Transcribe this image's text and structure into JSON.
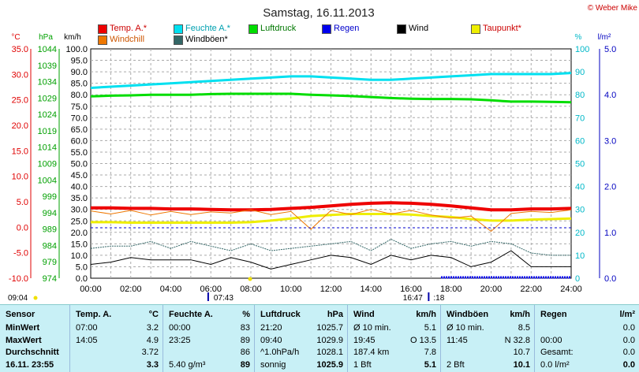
{
  "chart_data": {
    "type": "line",
    "title": "Samstag, 16.11.2013",
    "credit": "© Weber Mike",
    "x_ticks": [
      "00:00",
      "02:00",
      "04:00",
      "06:00",
      "08:00",
      "10:00",
      "12:00",
      "14:00",
      "16:00",
      "18:00",
      "20:00",
      "22:00",
      "24:00"
    ],
    "axes": {
      "temp": {
        "unit": "°C",
        "ticks": [
          "35.0",
          "30.0",
          "25.0",
          "20.0",
          "15.0",
          "10.0",
          "5.0",
          "0.0",
          "-5.0",
          "-10.0"
        ],
        "range": [
          -10,
          35
        ],
        "color": "#e00000"
      },
      "pressure": {
        "unit": "hPa",
        "ticks": [
          "1044",
          "1039",
          "1034",
          "1029",
          "1024",
          "1019",
          "1014",
          "1009",
          "1004",
          "999",
          "994",
          "989",
          "984",
          "979",
          "974"
        ],
        "range": [
          974,
          1044
        ],
        "color": "#00a000"
      },
      "wind": {
        "unit": "km/h",
        "ticks": [
          "100.0",
          "95.0",
          "90.0",
          "85.0",
          "80.0",
          "75.0",
          "70.0",
          "65.0",
          "60.0",
          "55.0",
          "50.0",
          "45.0",
          "40.0",
          "35.0",
          "30.0",
          "25.0",
          "20.0",
          "15.0",
          "10.0",
          "5.0",
          "0.0"
        ],
        "range": [
          0,
          100
        ],
        "color": "#000000"
      },
      "humidity": {
        "unit": "%",
        "ticks": [
          "100",
          "90",
          "80",
          "70",
          "60",
          "50",
          "40",
          "30",
          "20",
          "10",
          "0"
        ],
        "range": [
          0,
          100
        ],
        "color": "#00b8c8"
      },
      "rain": {
        "unit": "l/m²",
        "ticks": [
          "5.0",
          "4.0",
          "3.0",
          "2.0",
          "1.0",
          "0.0"
        ],
        "range": [
          0,
          5
        ],
        "color": "#0000c0"
      }
    },
    "legend": [
      {
        "name": "Temp. A.*",
        "color": "#ee0000"
      },
      {
        "name": "Feuchte A.*",
        "color": "#00e0f0"
      },
      {
        "name": "Luftdruck",
        "color": "#00dd00"
      },
      {
        "name": "Regen",
        "color": "#0000ee"
      },
      {
        "name": "Wind",
        "color": "#000000"
      },
      {
        "name": "Taupunkt*",
        "color": "#eeee00"
      },
      {
        "name": "Windchill",
        "color": "#ee7700"
      },
      {
        "name": "Windböen*",
        "color": "#336666"
      }
    ],
    "hours": [
      0,
      1,
      2,
      3,
      4,
      5,
      6,
      7,
      8,
      9,
      10,
      11,
      12,
      13,
      14,
      15,
      16,
      17,
      18,
      19,
      20,
      21,
      22,
      23,
      24
    ],
    "series": [
      {
        "name": "Temp. A.*",
        "axis": "temp",
        "color": "#ee0000",
        "values": [
          3.8,
          3.8,
          3.7,
          3.7,
          3.6,
          3.6,
          3.5,
          3.4,
          3.4,
          3.5,
          3.7,
          3.9,
          4.2,
          4.5,
          4.7,
          4.8,
          4.7,
          4.5,
          4.2,
          3.8,
          3.4,
          3.4,
          3.6,
          3.6,
          3.7
        ]
      },
      {
        "name": "Feuchte A.*",
        "axis": "humidity",
        "color": "#00e0f0",
        "values": [
          83,
          83.5,
          84,
          84.5,
          85,
          85.5,
          86,
          86.5,
          87,
          87.5,
          88,
          88,
          87.5,
          87,
          86.5,
          86.5,
          87,
          87.5,
          88,
          88.5,
          89,
          89,
          89,
          89,
          89.5
        ]
      },
      {
        "name": "Luftdruck",
        "axis": "pressure",
        "color": "#00dd00",
        "values": [
          1029.5,
          1029.7,
          1029.8,
          1030,
          1030,
          1030,
          1030.2,
          1030.3,
          1030.3,
          1030.3,
          1030.3,
          1030,
          1029.8,
          1029.6,
          1029.3,
          1029,
          1028.8,
          1028.7,
          1028.7,
          1028.6,
          1028.3,
          1027.9,
          1027.9,
          1027.8,
          1027.7
        ]
      },
      {
        "name": "Taupunkt*",
        "axis": "temp",
        "color": "#eeee00",
        "values": [
          1.0,
          1.0,
          0.9,
          0.9,
          0.9,
          0.9,
          0.9,
          0.9,
          1.0,
          1.3,
          1.7,
          2.2,
          2.4,
          2.6,
          2.6,
          2.6,
          2.5,
          2.2,
          2.0,
          1.6,
          1.3,
          1.3,
          1.5,
          1.6,
          1.7
        ]
      },
      {
        "name": "Windchill",
        "axis": "temp",
        "color": "#ee7700",
        "values": [
          3.2,
          2.6,
          3.3,
          2.4,
          3.1,
          2.5,
          3.0,
          2.8,
          3.4,
          2.5,
          3.1,
          -0.4,
          3.3,
          2.5,
          3.5,
          2.6,
          3.3,
          2.4,
          1.8,
          2.2,
          -0.8,
          2.7,
          3.1,
          2.9,
          3.4
        ]
      },
      {
        "name": "Wind",
        "axis": "wind",
        "color": "#000000",
        "values": [
          6,
          7,
          9,
          8,
          8,
          8,
          6,
          9,
          7,
          4,
          6,
          8,
          10,
          9,
          6,
          10,
          8,
          10,
          9,
          5,
          7,
          12,
          5,
          5,
          5
        ]
      },
      {
        "name": "Windböen*",
        "axis": "wind",
        "color": "#336666",
        "values": [
          13,
          14,
          14,
          16,
          13,
          16,
          14,
          12,
          15,
          12,
          13,
          14,
          15,
          16,
          12,
          17,
          13,
          15,
          16,
          14,
          16,
          15,
          11,
          10,
          10
        ]
      },
      {
        "name": "Regen",
        "axis": "rain",
        "color": "#0000ee",
        "values": [
          0,
          0,
          0,
          0,
          0,
          0,
          0,
          0,
          0,
          0,
          0,
          0,
          0,
          0,
          0,
          0,
          0,
          0,
          0,
          0,
          0,
          0,
          0,
          0,
          0
        ]
      }
    ],
    "rain_limit_line": 1.1,
    "sun": {
      "sunrise": "07:43",
      "sunset": "16:47",
      "left_label": "09:04",
      "right_label": ":18"
    }
  },
  "table": {
    "cols": [
      {
        "h1": "Sensor",
        "h2": "",
        "rows": [
          [
            "MinWert",
            ""
          ],
          [
            "MaxWert",
            ""
          ],
          [
            "Durchschnitt",
            ""
          ],
          [
            "16.11. 23:55",
            ""
          ]
        ]
      },
      {
        "h1": "Temp. A.",
        "h2": "°C",
        "rows": [
          [
            "07:00",
            "3.2"
          ],
          [
            "14:05",
            "4.9"
          ],
          [
            "",
            "3.72"
          ],
          [
            "",
            "3.3"
          ]
        ]
      },
      {
        "h1": "Feuchte A.",
        "h2": "%",
        "rows": [
          [
            "00:00",
            "83"
          ],
          [
            "23:25",
            "89"
          ],
          [
            "",
            "86"
          ],
          [
            "5.40 g/m³",
            "89"
          ]
        ]
      },
      {
        "h1": "Luftdruck",
        "h2": "hPa",
        "rows": [
          [
            "21:20",
            "1025.7"
          ],
          [
            "09:40",
            "1029.9"
          ],
          [
            "^1.0hPa/h",
            "1028.1"
          ],
          [
            "sonnig",
            "1025.9"
          ]
        ]
      },
      {
        "h1": "Wind",
        "h2": "km/h",
        "rows": [
          [
            "Ø 10 min.",
            "5.1"
          ],
          [
            "19:45",
            "O 13.5"
          ],
          [
            "187.4 km",
            "7.8"
          ],
          [
            "1 Bft",
            "5.1"
          ]
        ]
      },
      {
        "h1": "Windböen",
        "h2": "km/h",
        "rows": [
          [
            "Ø 10 min.",
            "8.5"
          ],
          [
            "11:45",
            "N 32.8"
          ],
          [
            "",
            "10.7"
          ],
          [
            "2 Bft",
            "10.1"
          ]
        ]
      },
      {
        "h1": "Regen",
        "h2": "l/m²",
        "rows": [
          [
            "",
            "0.0"
          ],
          [
            "00:00",
            "0.0"
          ],
          [
            "Gesamt:",
            "0.0"
          ],
          [
            "0.0 l/m²",
            "0.0"
          ]
        ]
      }
    ]
  }
}
